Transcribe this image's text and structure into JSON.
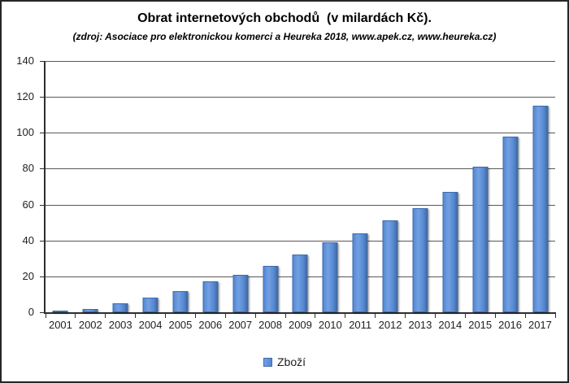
{
  "chart_data": {
    "type": "bar",
    "title": "Obrat internetových obchodů  (v milardách Kč).",
    "subtitle": "(zdroj: Asociace pro elektronickou komerci  a Heureka 2018, www.apek.cz, www.heureka.cz)",
    "categories": [
      "2001",
      "2002",
      "2003",
      "2004",
      "2005",
      "2006",
      "2007",
      "2008",
      "2009",
      "2010",
      "2011",
      "2012",
      "2013",
      "2014",
      "2015",
      "2016",
      "2017"
    ],
    "series": [
      {
        "name": "Zboží",
        "values": [
          1,
          2,
          5,
          8,
          12,
          17,
          21,
          26,
          32,
          39,
          44,
          51,
          58,
          67,
          81,
          98,
          115
        ]
      }
    ],
    "xlabel": "",
    "ylabel": "",
    "ylim": [
      0,
      140
    ],
    "yticks": [
      0,
      20,
      40,
      60,
      80,
      100,
      120,
      140
    ],
    "grid": true,
    "legend_position": "bottom",
    "colors": {
      "bar_fill": "#5588D1",
      "bar_fill_light": "#72A0E2",
      "bar_fill_dark": "#41699F",
      "bar_border": "#3E6BAD",
      "gridline": "#595959",
      "axis": "#2E2E2E",
      "text": "#212121"
    }
  }
}
